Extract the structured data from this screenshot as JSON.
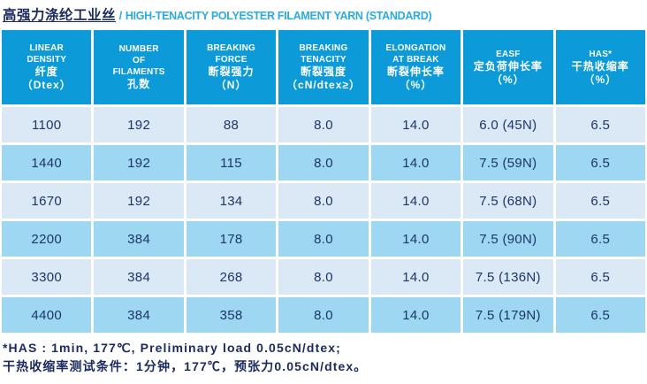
{
  "title": {
    "zh": "高强力涤纶工业丝",
    "sep": " / ",
    "en": "HIGH-TENACITY POLYESTER FILAMENT YARN (STANDARD)"
  },
  "colors": {
    "header_blue": "#0c9bd8",
    "row_light_blue": "#dbe9f7",
    "row_medium_blue": "#9dd7f2",
    "text_navy": "#1d3567",
    "title_en_blue": "#2aabe2"
  },
  "table": {
    "headers": [
      {
        "lines": [
          "LINEAR",
          "DENSITY",
          "纤度",
          "（Dtex）"
        ]
      },
      {
        "lines": [
          "NUMBER",
          "OF",
          "FILAMENTS",
          "孔数"
        ]
      },
      {
        "lines": [
          "BREAKING",
          "FORCE",
          "断裂强力",
          "（N）"
        ]
      },
      {
        "lines": [
          "BREAKING",
          "TENACITY",
          "断裂强度",
          "（cN/dtex≥）"
        ]
      },
      {
        "lines": [
          "ELONGATION",
          "AT BREAK",
          "断裂伸长率",
          "（%）"
        ]
      },
      {
        "lines": [
          "EASF",
          "定负荷伸长率",
          "（%）"
        ]
      },
      {
        "lines": [
          "HAS*",
          "干热收缩率",
          "（%）"
        ]
      }
    ],
    "rows": [
      [
        "1100",
        "192",
        "88",
        "8.0",
        "14.0",
        "6.0 (45N)",
        "6.5"
      ],
      [
        "1440",
        "192",
        "115",
        "8.0",
        "14.0",
        "7.5 (59N)",
        "6.5"
      ],
      [
        "1670",
        "192",
        "134",
        "8.0",
        "14.0",
        "7.5 (68N)",
        "6.5"
      ],
      [
        "2200",
        "384",
        "178",
        "8.0",
        "14.0",
        "7.5 (90N)",
        "6.5"
      ],
      [
        "3300",
        "384",
        "268",
        "8.0",
        "14.0",
        "7.5 (136N)",
        "6.5"
      ],
      [
        "4400",
        "384",
        "358",
        "8.0",
        "14.0",
        "7.5 (179N)",
        "6.5"
      ]
    ]
  },
  "footnotes": [
    "*HAS : 1min, 177℃, Preliminary load 0.05cN/dtex;",
    "干热收缩率测试条件：1分钟，177℃，预张力0.05cN/dtex。"
  ]
}
